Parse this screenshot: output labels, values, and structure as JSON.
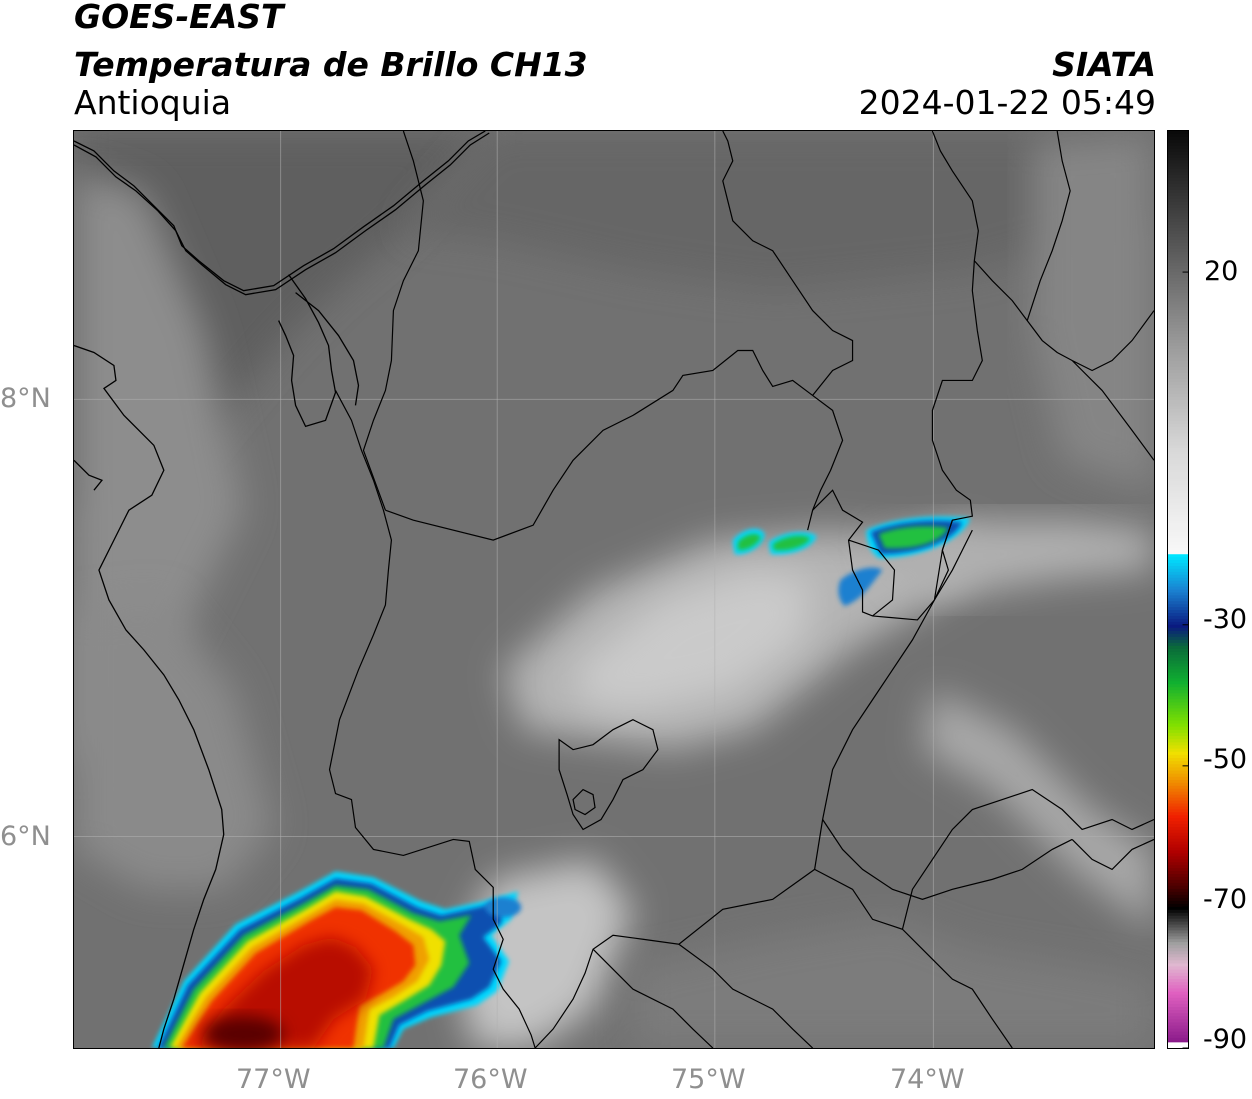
{
  "header": {
    "satellite": "GOES-EAST",
    "product": "Temperatura de Brillo CH13",
    "region": "Antioquia",
    "agency": "SIATA",
    "datetime": "2024-01-22 05:49"
  },
  "map": {
    "lon_range": [
      -77.95,
      -72.95
    ],
    "lat_range": [
      5.0,
      9.2
    ],
    "lon_ticks": [
      {
        "value": -77,
        "label": "77°W"
      },
      {
        "value": -76,
        "label": "76°W"
      },
      {
        "value": -75,
        "label": "75°W"
      },
      {
        "value": -74,
        "label": "74°W"
      }
    ],
    "lat_ticks": [
      {
        "value": 8,
        "label": "8°N"
      },
      {
        "value": 6,
        "label": "6°N"
      }
    ],
    "gridlines": true
  },
  "colorbar": {
    "range": [
      -90,
      40
    ],
    "ticks": [
      {
        "value": 20,
        "label": "20"
      },
      {
        "value": -30,
        "label": "-30"
      },
      {
        "value": -50,
        "label": "-50"
      },
      {
        "value": -70,
        "label": "-70"
      },
      {
        "value": -90,
        "label": "-90"
      }
    ],
    "stops": [
      {
        "value": 40,
        "color": "#0a0a0a"
      },
      {
        "value": 30,
        "color": "#3a3a3a"
      },
      {
        "value": 20,
        "color": "#6a6a6a"
      },
      {
        "value": 10,
        "color": "#9a9a9a"
      },
      {
        "value": -5,
        "color": "#d8d8d8"
      },
      {
        "value": -19.5,
        "color": "#f8f8f8"
      },
      {
        "value": -20,
        "color": "#00e5ff"
      },
      {
        "value": -25,
        "color": "#1a80d0"
      },
      {
        "value": -30,
        "color": "#0a1a80"
      },
      {
        "value": -33,
        "color": "#0a6a3a"
      },
      {
        "value": -38,
        "color": "#10b030"
      },
      {
        "value": -44,
        "color": "#80e000"
      },
      {
        "value": -48,
        "color": "#f0e000"
      },
      {
        "value": -52,
        "color": "#f09000"
      },
      {
        "value": -57,
        "color": "#f02000"
      },
      {
        "value": -62,
        "color": "#b00000"
      },
      {
        "value": -67,
        "color": "#4a0000"
      },
      {
        "value": -70,
        "color": "#000000"
      },
      {
        "value": -75,
        "color": "#a0a0a0"
      },
      {
        "value": -78,
        "color": "#e0b8d0"
      },
      {
        "value": -82,
        "color": "#e060c0"
      },
      {
        "value": -89,
        "color": "#8a1a8a"
      },
      {
        "value": -90,
        "color": "#ffffff"
      }
    ]
  },
  "palette": {
    "cloud_core": "#b81000",
    "cloud_mid": "#f03000",
    "cloud_orange": "#f0a000",
    "cloud_yellow": "#f0e000",
    "cloud_green": "#20c040",
    "cloud_blue": "#1050b0",
    "cloud_cyan": "#00d8ff"
  }
}
